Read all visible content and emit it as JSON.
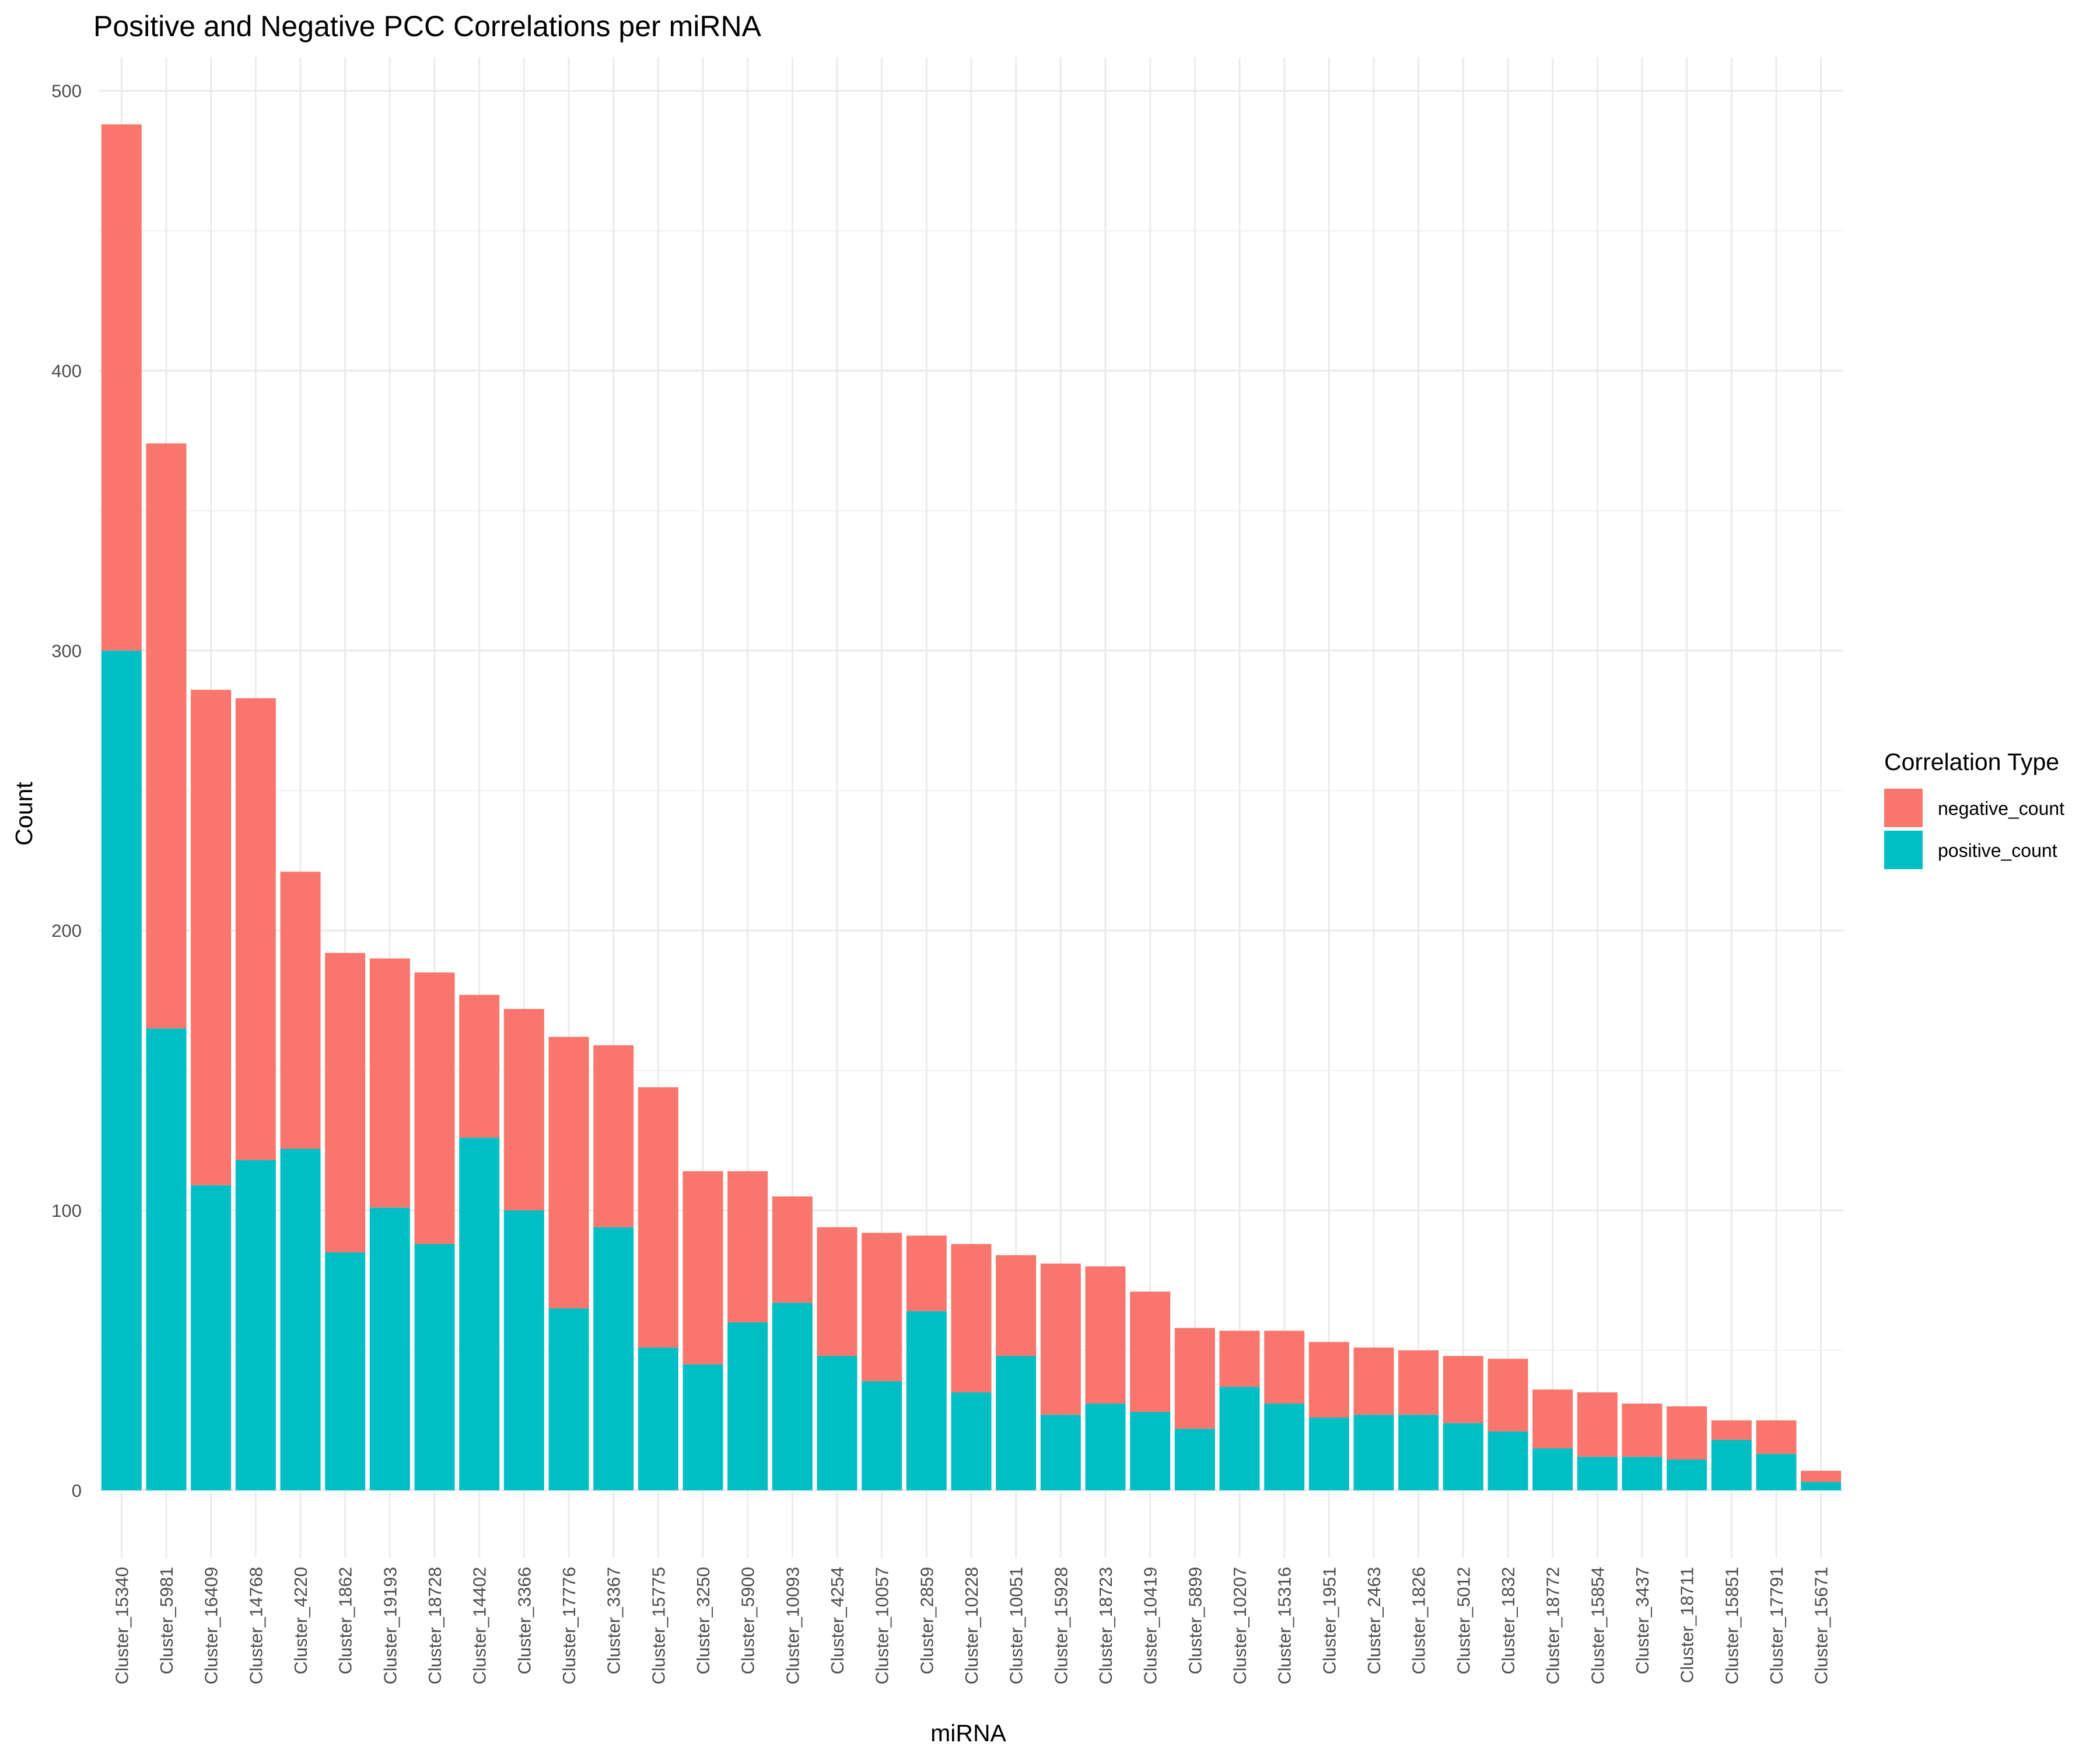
{
  "chart_data": {
    "type": "bar",
    "stacked": true,
    "title": "Positive and Negative PCC Correlations per miRNA",
    "xlabel": "miRNA",
    "ylabel": "Count",
    "ylim": [
      -24,
      512
    ],
    "yticks": [
      0,
      100,
      200,
      300,
      400,
      500
    ],
    "grid": true,
    "legend_position": "right",
    "legend_title": "Correlation Type",
    "categories": [
      "Cluster_15340",
      "Cluster_5981",
      "Cluster_16409",
      "Cluster_14768",
      "Cluster_4220",
      "Cluster_1862",
      "Cluster_19193",
      "Cluster_18728",
      "Cluster_14402",
      "Cluster_3366",
      "Cluster_17776",
      "Cluster_3367",
      "Cluster_15775",
      "Cluster_3250",
      "Cluster_5900",
      "Cluster_10093",
      "Cluster_4254",
      "Cluster_10057",
      "Cluster_2859",
      "Cluster_10228",
      "Cluster_10051",
      "Cluster_15928",
      "Cluster_18723",
      "Cluster_10419",
      "Cluster_5899",
      "Cluster_10207",
      "Cluster_15316",
      "Cluster_1951",
      "Cluster_2463",
      "Cluster_1826",
      "Cluster_5012",
      "Cluster_1832",
      "Cluster_18772",
      "Cluster_15854",
      "Cluster_3437",
      "Cluster_18711",
      "Cluster_15851",
      "Cluster_17791",
      "Cluster_15671"
    ],
    "series": [
      {
        "name": "negative_count",
        "color": "#F8766D",
        "values": [
          188,
          209,
          177,
          165,
          99,
          107,
          89,
          97,
          51,
          72,
          97,
          65,
          93,
          69,
          54,
          38,
          46,
          53,
          27,
          53,
          36,
          54,
          49,
          43,
          36,
          20,
          26,
          27,
          24,
          23,
          24,
          26,
          21,
          23,
          19,
          19,
          7,
          12,
          4
        ]
      },
      {
        "name": "positive_count",
        "color": "#00BFC4",
        "values": [
          300,
          165,
          109,
          118,
          122,
          85,
          101,
          88,
          126,
          100,
          65,
          94,
          51,
          45,
          60,
          67,
          48,
          39,
          64,
          35,
          48,
          27,
          31,
          28,
          22,
          37,
          31,
          26,
          27,
          27,
          24,
          21,
          15,
          12,
          12,
          11,
          18,
          13,
          3
        ]
      }
    ]
  }
}
